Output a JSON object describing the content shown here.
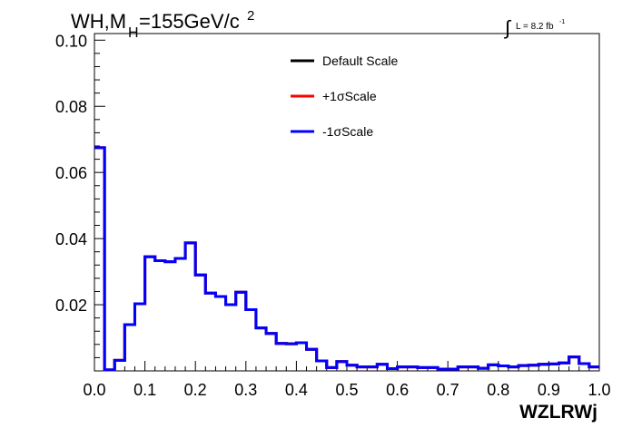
{
  "chart_data": {
    "type": "line",
    "title_main": "WH,M",
    "title_sub": "H",
    "title_rest": "=155GeV/c",
    "title_sup": "2",
    "lumi_integral": "∫",
    "lumi_text": "L = 8.2 fb",
    "lumi_sup": "-1",
    "xlabel": "WZLRWj",
    "ylabel": "",
    "xlim": [
      0.0,
      1.0
    ],
    "ylim": [
      0.0,
      0.102
    ],
    "x_ticks": [
      "0.0",
      "0.1",
      "0.2",
      "0.3",
      "0.4",
      "0.5",
      "0.6",
      "0.7",
      "0.8",
      "0.9",
      "1.0"
    ],
    "y_ticks": [
      "0.02",
      "0.04",
      "0.06",
      "0.08",
      "0.10"
    ],
    "y_tick_values": [
      0.02,
      0.04,
      0.06,
      0.08,
      0.1
    ],
    "legend_position": "top-center",
    "bin_edges_start": 0.0,
    "bin_width": 0.02,
    "series": [
      {
        "name": "Default Scale",
        "color": "#000000",
        "values": [
          0.0675,
          0.0003,
          0.0032,
          0.014,
          0.0203,
          0.0345,
          0.0333,
          0.033,
          0.034,
          0.0387,
          0.029,
          0.0235,
          0.0225,
          0.02,
          0.0238,
          0.0185,
          0.013,
          0.0113,
          0.0083,
          0.0082,
          0.0085,
          0.0065,
          0.003,
          0.001,
          0.0028,
          0.0017,
          0.0012,
          0.0012,
          0.002,
          0.0007,
          0.0012,
          0.0012,
          0.001,
          0.001,
          0.0005,
          0.0005,
          0.0012,
          0.0012,
          0.0008,
          0.0018,
          0.0015,
          0.0012,
          0.0016,
          0.0017,
          0.002,
          0.0021,
          0.0024,
          0.0042,
          0.0022,
          0.0012
        ]
      },
      {
        "name": "+1σScale",
        "color": "#ff0000",
        "values": [
          0.0675,
          0.0003,
          0.0032,
          0.014,
          0.0203,
          0.0345,
          0.0333,
          0.033,
          0.034,
          0.0387,
          0.029,
          0.0235,
          0.0225,
          0.02,
          0.0238,
          0.0185,
          0.013,
          0.0113,
          0.0083,
          0.0082,
          0.0085,
          0.0065,
          0.003,
          0.001,
          0.0028,
          0.0017,
          0.0012,
          0.0012,
          0.002,
          0.0007,
          0.0012,
          0.0012,
          0.001,
          0.001,
          0.0005,
          0.0005,
          0.0012,
          0.0012,
          0.0008,
          0.0018,
          0.0015,
          0.0012,
          0.0016,
          0.0017,
          0.002,
          0.0021,
          0.0024,
          0.0042,
          0.0022,
          0.0012
        ]
      },
      {
        "name": "-1σScale",
        "color": "#0000ff",
        "values": [
          0.0675,
          0.0003,
          0.0032,
          0.014,
          0.0203,
          0.0345,
          0.0333,
          0.033,
          0.034,
          0.0387,
          0.029,
          0.0235,
          0.0225,
          0.02,
          0.0238,
          0.0185,
          0.013,
          0.0113,
          0.0083,
          0.0082,
          0.0085,
          0.0065,
          0.003,
          0.001,
          0.0028,
          0.0017,
          0.0012,
          0.0012,
          0.002,
          0.0007,
          0.0012,
          0.0012,
          0.001,
          0.001,
          0.0005,
          0.0005,
          0.0012,
          0.0012,
          0.0008,
          0.0018,
          0.0015,
          0.0012,
          0.0016,
          0.0017,
          0.002,
          0.0021,
          0.0024,
          0.0042,
          0.0022,
          0.0012
        ]
      }
    ]
  }
}
